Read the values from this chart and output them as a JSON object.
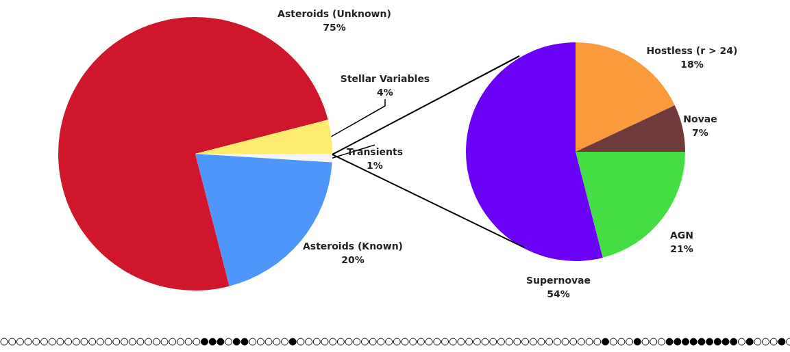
{
  "chart_data": [
    {
      "type": "pie",
      "categories": [
        "Transients",
        "Asteroids (Known)",
        "Asteroids (Unknown)",
        "Stellar Variables"
      ],
      "values": [
        1,
        20,
        75,
        4
      ],
      "value_labels": [
        "1%",
        "20%",
        "75%",
        "4%"
      ],
      "colors": [
        "#f4f4f4",
        "#4f96fb",
        "#d0162a",
        "#fdec6e"
      ]
    },
    {
      "type": "pie",
      "categories": [
        "Hostless (r > 24)",
        "Novae",
        "AGN",
        "Supernovae"
      ],
      "values": [
        18,
        7,
        21,
        54
      ],
      "value_labels": [
        "18%",
        "7%",
        "21%",
        "54%"
      ],
      "colors": [
        "#fb9a3a",
        "#6e3a3a",
        "#44dd44",
        "#6a00f5"
      ]
    }
  ]
}
